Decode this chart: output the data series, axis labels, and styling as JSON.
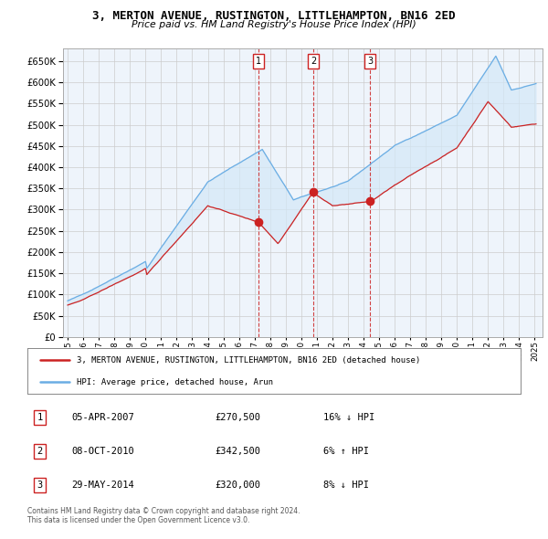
{
  "title": "3, MERTON AVENUE, RUSTINGTON, LITTLEHAMPTON, BN16 2ED",
  "subtitle": "Price paid vs. HM Land Registry's House Price Index (HPI)",
  "legend_line1": "3, MERTON AVENUE, RUSTINGTON, LITTLEHAMPTON, BN16 2ED (detached house)",
  "legend_line2": "HPI: Average price, detached house, Arun",
  "copyright": "Contains HM Land Registry data © Crown copyright and database right 2024.\nThis data is licensed under the Open Government Licence v3.0.",
  "transactions": [
    {
      "num": 1,
      "date": "05-APR-2007",
      "price": "£270,500",
      "hpi": "16% ↓ HPI",
      "year": 2007.26
    },
    {
      "num": 2,
      "date": "08-OCT-2010",
      "price": "£342,500",
      "hpi": "6% ↑ HPI",
      "year": 2010.77
    },
    {
      "num": 3,
      "date": "29-MAY-2014",
      "price": "£320,000",
      "hpi": "8% ↓ HPI",
      "year": 2014.41
    }
  ],
  "transaction_prices": [
    270500,
    342500,
    320000
  ],
  "ylim": [
    0,
    680000
  ],
  "yticks": [
    0,
    50000,
    100000,
    150000,
    200000,
    250000,
    300000,
    350000,
    400000,
    450000,
    500000,
    550000,
    600000,
    650000
  ],
  "hpi_color": "#6aade4",
  "price_color": "#cc2222",
  "fill_color": "#d4e8f7",
  "background_color": "#ffffff",
  "grid_color": "#cccccc",
  "chart_bg": "#eef4fb"
}
